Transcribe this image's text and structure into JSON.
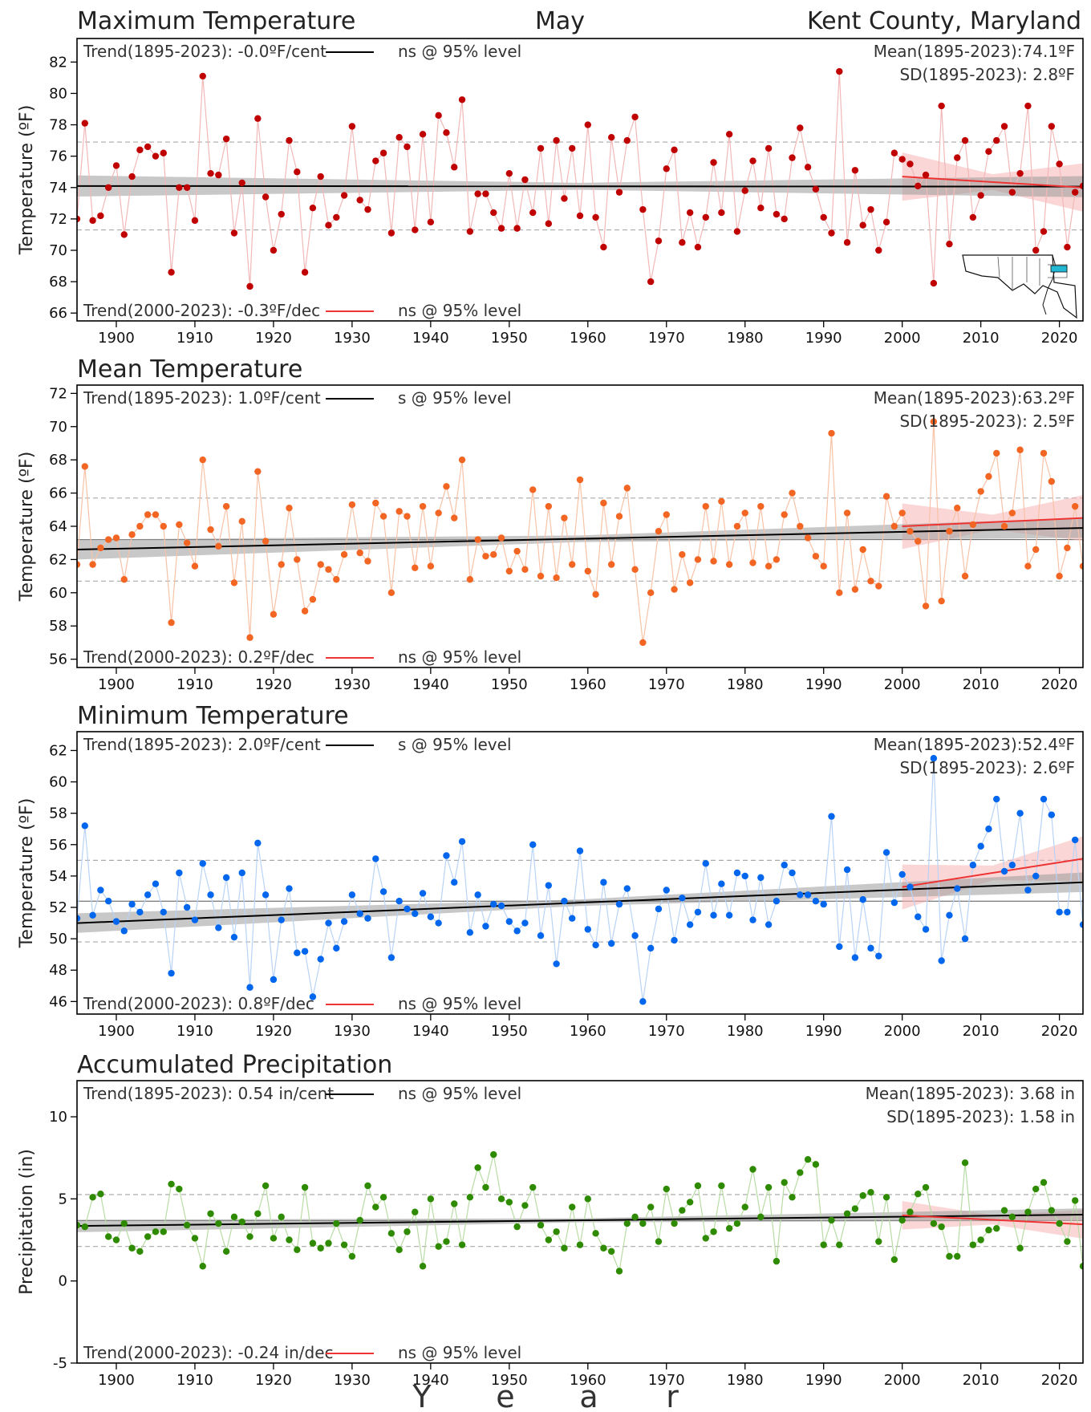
{
  "header": {
    "title": "Maximum Temperature",
    "month": "May",
    "location": "Kent County, Maryland"
  },
  "x_axis": {
    "title_letters": [
      "Y",
      "e",
      "a",
      "r"
    ],
    "range": [
      1895,
      2023
    ],
    "ticks": [
      1900,
      1910,
      1920,
      1930,
      1940,
      1950,
      1960,
      1970,
      1980,
      1990,
      2000,
      2010,
      2020
    ]
  },
  "chart_data": [
    {
      "id": "max",
      "type": "line",
      "title": "Maximum Temperature",
      "ylabel": "Temperature (ºF)",
      "ylim": [
        65.5,
        83.5
      ],
      "yticks": [
        66,
        68,
        70,
        72,
        74,
        76,
        78,
        80,
        82
      ],
      "color": "#c00000",
      "line_color": "#f2b8b8",
      "years": [
        1895,
        2023
      ],
      "values": [
        72.0,
        78.1,
        71.9,
        72.2,
        74.0,
        75.4,
        71.0,
        74.7,
        76.4,
        76.6,
        76.0,
        76.2,
        68.6,
        74.0,
        74.0,
        71.9,
        81.1,
        74.9,
        74.8,
        77.1,
        71.1,
        74.3,
        67.7,
        78.4,
        73.4,
        70.0,
        72.3,
        77.0,
        75.0,
        68.6,
        72.7,
        74.7,
        71.6,
        72.1,
        73.5,
        77.9,
        73.2,
        72.6,
        75.7,
        76.2,
        71.1,
        77.2,
        76.6,
        71.3,
        77.4,
        71.8,
        78.6,
        77.5,
        75.3,
        79.6,
        71.2,
        73.6,
        73.6,
        72.4,
        71.4,
        74.9,
        71.4,
        74.5,
        72.4,
        76.5,
        71.7,
        77.0,
        73.3,
        76.5,
        72.2,
        78.0,
        72.1,
        70.2,
        77.2,
        73.7,
        77.0,
        78.5,
        72.6,
        68.0,
        70.6,
        75.2,
        76.4,
        70.5,
        72.4,
        70.2,
        72.1,
        75.6,
        72.4,
        77.4,
        71.2,
        73.8,
        75.7,
        72.7,
        76.5,
        72.3,
        72.0,
        75.9,
        77.8,
        75.3,
        73.9,
        72.1,
        71.1,
        81.4,
        70.5,
        75.1,
        71.6,
        72.6,
        70.0,
        71.8,
        76.2,
        75.8,
        75.5,
        74.1,
        74.8,
        67.9,
        79.2,
        70.4,
        75.9,
        77.0,
        72.1,
        73.5,
        76.3,
        77.0,
        77.9,
        73.7,
        74.9,
        79.2,
        70.0,
        71.2,
        77.9,
        75.5,
        70.2,
        73.7,
        74.1,
        72.3
      ],
      "mean_line": 74.1,
      "sd_lines": [
        71.3,
        76.9
      ],
      "trend_long": {
        "x": [
          1895,
          2023
        ],
        "y": [
          74.1,
          74.06
        ]
      },
      "trend_recent": {
        "x": [
          2000,
          2023
        ],
        "y": [
          74.7,
          74.0
        ]
      },
      "trend_long_label": "Trend(1895-2023):  -0.0ºF/cent",
      "trend_long_sig": "ns @ 95% level",
      "trend_recent_label": "Trend(2000-2023):  -0.3ºF/dec",
      "trend_recent_sig": "ns @ 95% level",
      "mean_label": "Mean(1895-2023):74.1ºF",
      "sd_label": "SD(1895-2023): 2.8ºF"
    },
    {
      "id": "mean",
      "type": "line",
      "title": "Mean Temperature",
      "ylabel": "Temperature (ºF)",
      "ylim": [
        55.5,
        72.5
      ],
      "yticks": [
        56,
        58,
        60,
        62,
        64,
        66,
        68,
        70,
        72
      ],
      "color": "#f26522",
      "line_color": "#f8c2a6",
      "years": [
        1895,
        2023
      ],
      "values": [
        61.7,
        67.6,
        61.7,
        62.7,
        63.2,
        63.3,
        60.8,
        63.5,
        64.0,
        64.7,
        64.7,
        64.0,
        58.2,
        64.1,
        63.0,
        61.6,
        68.0,
        63.8,
        62.8,
        65.2,
        60.6,
        64.3,
        57.3,
        67.3,
        63.1,
        58.7,
        61.7,
        65.1,
        62.0,
        58.9,
        59.6,
        61.7,
        61.4,
        60.8,
        62.3,
        65.3,
        62.4,
        61.9,
        65.4,
        64.6,
        60.0,
        64.9,
        64.6,
        61.5,
        65.2,
        61.6,
        64.8,
        66.4,
        64.5,
        68.0,
        60.8,
        63.2,
        62.2,
        62.3,
        63.3,
        61.3,
        62.5,
        61.4,
        66.2,
        61.0,
        65.2,
        60.9,
        64.5,
        61.7,
        66.8,
        61.3,
        59.9,
        65.4,
        61.7,
        64.6,
        66.3,
        61.4,
        57.0,
        60.0,
        63.7,
        64.7,
        60.2,
        62.3,
        60.6,
        62.0,
        65.2,
        61.9,
        65.5,
        61.7,
        64.0,
        64.8,
        61.8,
        65.2,
        61.6,
        62.0,
        64.7,
        66.0,
        64.0,
        63.3,
        62.2,
        61.6,
        69.6,
        60.0,
        64.8,
        60.2,
        62.6,
        60.7,
        60.4,
        65.8,
        64.0,
        64.8,
        63.7,
        63.1,
        59.2,
        70.3,
        59.5,
        63.7,
        65.1,
        61.0,
        64.1,
        66.1,
        67.0,
        68.4,
        64.0,
        64.8,
        68.6,
        61.6,
        62.6,
        68.4,
        66.7,
        61.0,
        62.7,
        65.2,
        61.6
      ],
      "mean_line": 63.2,
      "sd_lines": [
        60.7,
        65.7
      ],
      "trend_long": {
        "x": [
          1895,
          2023
        ],
        "y": [
          62.6,
          63.9
        ]
      },
      "trend_recent": {
        "x": [
          2000,
          2023
        ],
        "y": [
          64.0,
          64.5
        ]
      },
      "trend_long_label": "Trend(1895-2023):  1.0ºF/cent",
      "trend_long_sig": "s @ 95% level",
      "trend_recent_label": "Trend(2000-2023):  0.2ºF/dec",
      "trend_recent_sig": "ns @ 95% level",
      "mean_label": "Mean(1895-2023):63.2ºF",
      "sd_label": "SD(1895-2023): 2.5ºF"
    },
    {
      "id": "min",
      "type": "line",
      "title": "Minimum Temperature",
      "ylabel": "Temperature (ºF)",
      "ylim": [
        45.2,
        63.2
      ],
      "yticks": [
        46,
        48,
        50,
        52,
        54,
        56,
        58,
        60,
        62
      ],
      "color": "#0066ee",
      "line_color": "#b9d3f6",
      "years": [
        1895,
        2023
      ],
      "values": [
        51.3,
        57.2,
        51.5,
        53.1,
        52.4,
        51.1,
        50.5,
        52.2,
        51.7,
        52.8,
        53.5,
        51.7,
        47.8,
        54.2,
        52.0,
        51.2,
        54.8,
        52.8,
        50.7,
        53.9,
        50.1,
        54.2,
        46.9,
        56.1,
        52.8,
        47.4,
        51.2,
        53.2,
        49.1,
        49.2,
        46.3,
        48.7,
        51.0,
        49.4,
        51.1,
        52.8,
        51.6,
        51.3,
        55.1,
        53.0,
        48.8,
        52.4,
        51.9,
        51.6,
        52.9,
        51.4,
        51.0,
        55.3,
        53.6,
        56.2,
        50.4,
        52.8,
        50.8,
        52.2,
        52.1,
        51.1,
        50.5,
        51.0,
        56.0,
        50.2,
        53.4,
        48.4,
        52.4,
        51.3,
        55.6,
        50.6,
        49.6,
        53.6,
        49.7,
        52.2,
        53.2,
        50.2,
        46.0,
        49.4,
        51.9,
        53.1,
        49.9,
        52.6,
        50.9,
        51.7,
        54.8,
        51.5,
        53.5,
        51.5,
        54.2,
        54.0,
        51.2,
        53.9,
        50.9,
        52.4,
        54.7,
        54.2,
        52.8,
        52.8,
        52.4,
        52.2,
        57.8,
        49.5,
        54.4,
        48.8,
        52.5,
        49.4,
        48.9,
        55.5,
        52.3,
        54.1,
        53.3,
        51.4,
        50.6,
        61.5,
        48.6,
        51.5,
        53.2,
        50.0,
        54.7,
        55.9,
        57.0,
        58.9,
        54.3,
        54.7,
        58.0,
        53.1,
        54.0,
        58.9,
        57.9,
        51.7,
        51.7,
        56.3,
        50.9
      ],
      "mean_line": 52.4,
      "sd_lines": [
        49.8,
        55.0
      ],
      "trend_long": {
        "x": [
          1895,
          2023
        ],
        "y": [
          51.0,
          53.6
        ]
      },
      "trend_recent": {
        "x": [
          2000,
          2023
        ],
        "y": [
          53.3,
          55.1
        ]
      },
      "trend_long_label": "Trend(1895-2023):  2.0ºF/cent",
      "trend_long_sig": "s @ 95% level",
      "trend_recent_label": "Trend(2000-2023):  0.8ºF/dec",
      "trend_recent_sig": "ns @ 95% level",
      "mean_label": "Mean(1895-2023):52.4ºF",
      "sd_label": "SD(1895-2023): 2.6ºF"
    },
    {
      "id": "prcp",
      "type": "line",
      "title": "Accumulated Precipitation",
      "ylabel": "Precipitation (in)",
      "ylim": [
        -5,
        12.2
      ],
      "yticks": [
        -5,
        0,
        5,
        10
      ],
      "color": "#2e8b00",
      "line_color": "#b8dca5",
      "years": [
        1895,
        2023
      ],
      "values": [
        3.4,
        3.3,
        5.1,
        5.3,
        2.7,
        2.5,
        3.5,
        2.0,
        1.8,
        2.7,
        3.0,
        3.0,
        5.9,
        5.6,
        3.4,
        2.6,
        0.9,
        4.1,
        3.5,
        1.8,
        3.9,
        3.6,
        2.7,
        4.1,
        5.8,
        2.6,
        3.9,
        2.5,
        1.9,
        5.7,
        2.3,
        2.0,
        2.3,
        3.5,
        2.2,
        1.5,
        3.7,
        5.8,
        4.5,
        5.1,
        2.9,
        1.9,
        3.0,
        4.2,
        0.9,
        5.0,
        2.1,
        2.4,
        4.7,
        2.2,
        5.1,
        6.9,
        5.7,
        7.7,
        5.0,
        4.8,
        3.3,
        4.6,
        5.7,
        3.4,
        2.5,
        3.0,
        2.0,
        4.5,
        2.2,
        5.0,
        2.9,
        2.0,
        1.8,
        0.6,
        3.5,
        3.9,
        3.5,
        4.5,
        2.4,
        5.6,
        3.5,
        4.3,
        4.8,
        5.8,
        2.6,
        3.0,
        5.8,
        3.2,
        3.5,
        4.5,
        6.8,
        3.9,
        5.7,
        1.2,
        6.0,
        5.1,
        6.6,
        7.4,
        7.1,
        2.2,
        3.7,
        2.2,
        4.1,
        4.4,
        5.2,
        5.4,
        2.4,
        5.1,
        1.3,
        3.7,
        4.2,
        5.3,
        5.7,
        3.5,
        3.3,
        1.5,
        1.5,
        7.2,
        2.2,
        2.5,
        3.1,
        3.2,
        4.3,
        3.9,
        2.0,
        4.2,
        5.6,
        6.0,
        4.3,
        3.5,
        2.4,
        4.9,
        0.9
      ],
      "mean_line": 3.68,
      "sd_lines": [
        2.1,
        5.26
      ],
      "trend_long": {
        "x": [
          1895,
          2023
        ],
        "y": [
          3.35,
          4.04
        ]
      },
      "trend_recent": {
        "x": [
          2000,
          2023
        ],
        "y": [
          4.0,
          3.45
        ]
      },
      "trend_long_label": "Trend(1895-2023):  0.54 in/cent",
      "trend_long_sig": "ns @ 95% level",
      "trend_recent_label": "Trend(2000-2023):  -0.24 in/dec",
      "trend_recent_sig": "ns @ 95% level",
      "mean_label": "Mean(1895-2023): 3.68 in",
      "sd_label": "SD(1895-2023): 1.58 in"
    }
  ]
}
